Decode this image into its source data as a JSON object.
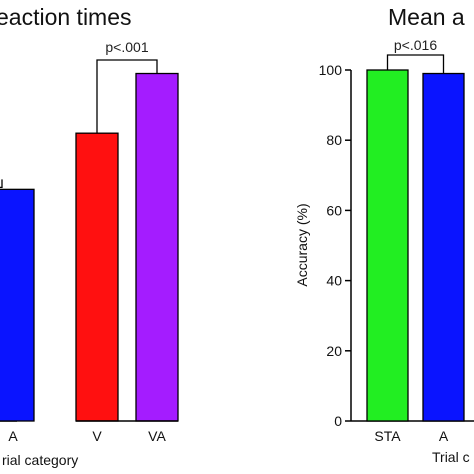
{
  "chart_data": [
    {
      "type": "bar",
      "title": "eaction times",
      "categories": [
        "A",
        "V",
        "VA"
      ],
      "values": [
        0.66,
        0.82,
        0.99
      ],
      "colors": [
        "#0a14ff",
        "#ff1010",
        "#a41cff"
      ],
      "xlabel": "rial category",
      "significance": [
        {
          "label": "p<.001",
          "between": [
            "V",
            "VA"
          ]
        }
      ]
    },
    {
      "type": "bar",
      "title": "Mean a",
      "categories": [
        "STA",
        "A"
      ],
      "values": [
        100,
        99
      ],
      "colors": [
        "#22ee22",
        "#0a14ff"
      ],
      "ylabel": "Accuracy (%)",
      "xlabel": "Trial c",
      "ylim": [
        0,
        100
      ],
      "yticks": [
        0,
        20,
        40,
        60,
        80,
        100
      ],
      "significance": [
        {
          "label": "p<.016",
          "between": [
            "STA",
            "A"
          ]
        }
      ]
    }
  ]
}
